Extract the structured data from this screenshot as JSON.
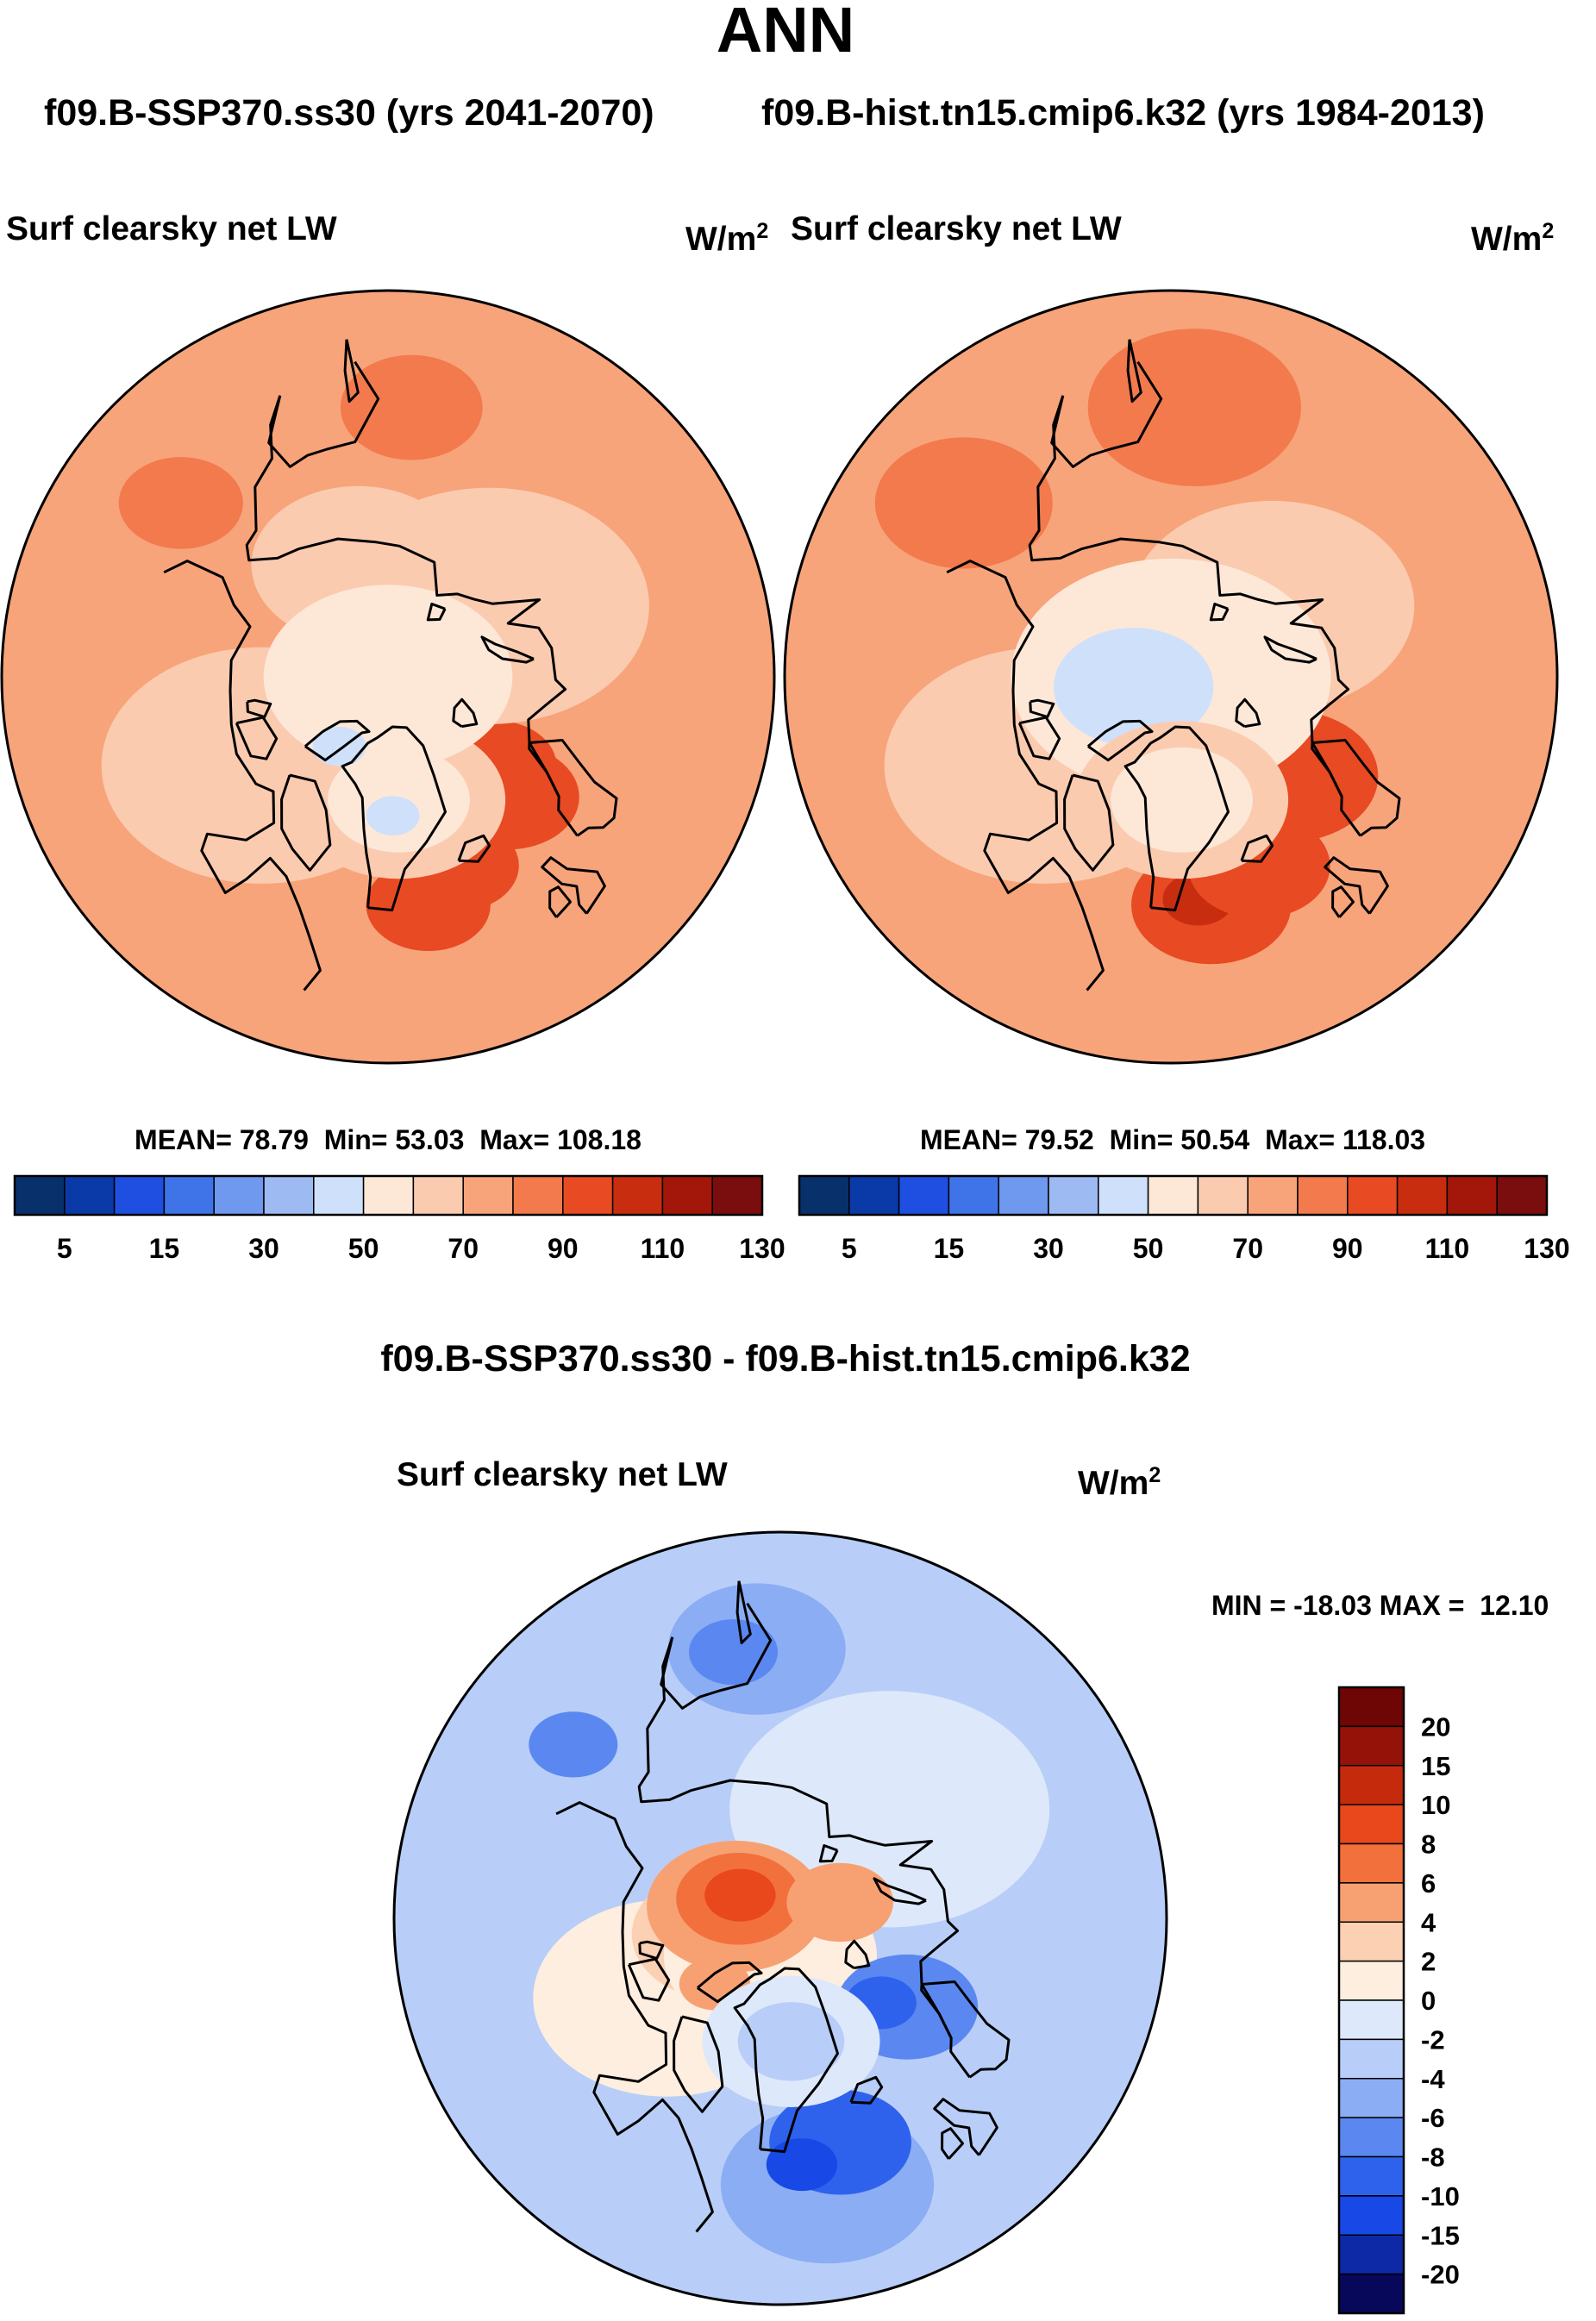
{
  "title": "ANN",
  "subtitle_left": "f09.B-SSP370.ss30 (yrs 2041-2070)",
  "subtitle_right": "f09.B-hist.tn15.cmip6.k32 (yrs 1984-2013)",
  "diff_title": "f09.B-SSP370.ss30 - f09.B-hist.tn15.cmip6.k32",
  "palettes": {
    "abs": [
      "#08306b",
      "#0a3aa8",
      "#1f4fe0",
      "#3f74e8",
      "#6f98ef",
      "#9dbaf3",
      "#cfe0fa",
      "#fde8d8",
      "#fbcbb0",
      "#f7a47a",
      "#f27a4d",
      "#e84a23",
      "#c92d10",
      "#a3170a",
      "#7a0d0d"
    ],
    "diff": [
      "#08085a",
      "#0d29a6",
      "#1848e6",
      "#2f62ec",
      "#5a88f0",
      "#8aadf4",
      "#b8cef8",
      "#dde9fb",
      "#fdeee0",
      "#fbd0b3",
      "#f7a173",
      "#f2703c",
      "#e8481c",
      "#c62a0c",
      "#951208",
      "#6e0606"
    ]
  },
  "chart_data": [
    {
      "type": "heatmap",
      "projection": "north-polar-stereographic",
      "title": "Surf clearsky net LW",
      "units": "W/m",
      "units_superscript": "2",
      "stats": {
        "mean_label": "MEAN=",
        "mean": "78.79",
        "min_label": "Min=",
        "min": "53.03",
        "max_label": "Max=",
        "max": "108.18"
      },
      "colorbar": {
        "orientation": "horizontal",
        "levels": [
          5,
          10,
          15,
          20,
          30,
          40,
          50,
          60,
          70,
          80,
          90,
          100,
          110,
          120
        ],
        "tick_labels": [
          "5",
          "15",
          "30",
          "50",
          "70",
          "90",
          "110",
          "130"
        ]
      },
      "field": {
        "background": 9,
        "regions": [
          {
            "level": 11,
            "lon": -35,
            "lat": 60,
            "r": 7
          },
          {
            "level": 11,
            "lon": -25,
            "lat": 64,
            "r": 7
          },
          {
            "level": 11,
            "lon": 0,
            "lat": 68,
            "r": 8
          },
          {
            "level": 11,
            "lon": 5,
            "lat": 72,
            "r": 7
          },
          {
            "level": 10,
            "lon": 130,
            "lat": 55,
            "r": 8
          },
          {
            "level": 10,
            "lon": -175,
            "lat": 55,
            "r": 7
          },
          {
            "level": 8,
            "lon": -100,
            "lat": 70,
            "r": 18
          },
          {
            "level": 8,
            "lon": 80,
            "lat": 74,
            "r": 18
          },
          {
            "level": 8,
            "lon": 150,
            "lat": 75,
            "r": 12
          },
          {
            "level": 8,
            "lon": -40,
            "lat": 74,
            "r": 12
          },
          {
            "level": 7,
            "lon": 0,
            "lat": 90,
            "r": 14
          },
          {
            "level": 7,
            "lon": -40,
            "lat": 74,
            "r": 8
          },
          {
            "level": 6,
            "lon": -80,
            "lat": 79,
            "r": 3
          },
          {
            "level": 6,
            "lon": -43,
            "lat": 72,
            "r": 3
          }
        ]
      }
    },
    {
      "type": "heatmap",
      "projection": "north-polar-stereographic",
      "title": "Surf clearsky net LW",
      "units": "W/m",
      "units_superscript": "2",
      "stats": {
        "mean_label": "MEAN=",
        "mean": "79.52",
        "min_label": "Min=",
        "min": "50.54",
        "max_label": "Max=",
        "max": "118.03"
      },
      "colorbar": {
        "orientation": "horizontal",
        "levels": [
          5,
          10,
          15,
          20,
          30,
          40,
          50,
          60,
          70,
          80,
          90,
          100,
          110,
          120
        ],
        "tick_labels": [
          "5",
          "15",
          "30",
          "50",
          "70",
          "90",
          "110",
          "130"
        ]
      },
      "field": {
        "background": 9,
        "regions": [
          {
            "level": 11,
            "lon": -35,
            "lat": 60,
            "r": 9
          },
          {
            "level": 12,
            "lon": -38,
            "lat": 61,
            "r": 4
          },
          {
            "level": 11,
            "lon": -20,
            "lat": 63,
            "r": 8
          },
          {
            "level": 11,
            "lon": 5,
            "lat": 70,
            "r": 10
          },
          {
            "level": 10,
            "lon": 130,
            "lat": 55,
            "r": 12
          },
          {
            "level": 10,
            "lon": -175,
            "lat": 55,
            "r": 10
          },
          {
            "level": 8,
            "lon": -100,
            "lat": 70,
            "r": 18
          },
          {
            "level": 8,
            "lon": 80,
            "lat": 74,
            "r": 16
          },
          {
            "level": 7,
            "lon": 0,
            "lat": 90,
            "r": 18
          },
          {
            "level": 6,
            "lon": -120,
            "lat": 85,
            "r": 9
          },
          {
            "level": 8,
            "lon": -40,
            "lat": 74,
            "r": 12
          },
          {
            "level": 7,
            "lon": -40,
            "lat": 74,
            "r": 8
          }
        ]
      }
    },
    {
      "type": "heatmap",
      "projection": "north-polar-stereographic",
      "title": "Surf clearsky net LW",
      "units": "W/m",
      "units_superscript": "2",
      "stats": {
        "min_label": "MIN =",
        "min": "-18.03",
        "max_label": "MAX =",
        "max": "12.10"
      },
      "colorbar": {
        "orientation": "vertical",
        "levels": [
          -20,
          -15,
          -10,
          -8,
          -6,
          -4,
          -2,
          0,
          2,
          4,
          6,
          8,
          10,
          15,
          20
        ],
        "tick_labels": [
          "20",
          "15",
          "10",
          "8",
          "6",
          "4",
          "2",
          "0",
          "-2",
          "-4",
          "-6",
          "-8",
          "-10",
          "-15",
          "-20"
        ]
      },
      "field": {
        "background": 6,
        "regions": [
          {
            "level": 7,
            "lon": 90,
            "lat": 70,
            "r": 18
          },
          {
            "level": 8,
            "lon": -100,
            "lat": 72,
            "r": 15
          },
          {
            "level": 9,
            "lon": -120,
            "lat": 82,
            "r": 10
          },
          {
            "level": 8,
            "lon": -60,
            "lat": 85,
            "r": 12
          },
          {
            "level": 10,
            "lon": -150,
            "lat": 84,
            "r": 10
          },
          {
            "level": 11,
            "lon": -160,
            "lat": 84,
            "r": 7
          },
          {
            "level": 12,
            "lon": -165,
            "lat": 84,
            "r": 4
          },
          {
            "level": 10,
            "lon": 60,
            "lat": 82,
            "r": 6
          },
          {
            "level": 10,
            "lon": -90,
            "lat": 78,
            "r": 4
          },
          {
            "level": 5,
            "lon": -35,
            "lat": 55,
            "r": 12
          },
          {
            "level": 3,
            "lon": -30,
            "lat": 60,
            "r": 8
          },
          {
            "level": 2,
            "lon": -40,
            "lat": 58,
            "r": 4
          },
          {
            "level": 4,
            "lon": 10,
            "lat": 70,
            "r": 8
          },
          {
            "level": 3,
            "lon": 5,
            "lat": 73,
            "r": 4
          },
          {
            "level": 5,
            "lon": 140,
            "lat": 55,
            "r": 10
          },
          {
            "level": 4,
            "lon": 145,
            "lat": 55,
            "r": 5
          },
          {
            "level": 4,
            "lon": -175,
            "lat": 55,
            "r": 5
          },
          {
            "level": 7,
            "lon": -40,
            "lat": 74,
            "r": 10
          },
          {
            "level": 6,
            "lon": -40,
            "lat": 74,
            "r": 6
          }
        ]
      }
    }
  ]
}
